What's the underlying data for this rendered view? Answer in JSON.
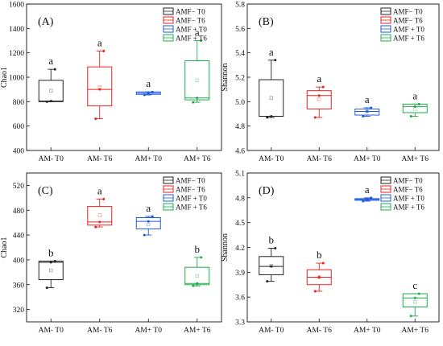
{
  "chart_data": [
    {
      "type": "box",
      "panel_label": "(A)",
      "ylabel": "Chao1",
      "ylim": [
        400,
        1600
      ],
      "yticks": [
        "400",
        "600",
        "800",
        "1000",
        "1200",
        "1400",
        "1600"
      ],
      "categories": [
        "AM- T0",
        "AM- T6",
        "AM+ T0",
        "AM+ T6"
      ],
      "legend": [
        "AMF− T0",
        "AMF− T6",
        "AMF + T0",
        "AMF + T6"
      ],
      "series": [
        {
          "name": "AMF− T0",
          "color": "#222222",
          "whisker_low": 800,
          "q1": 800,
          "median": 805,
          "q3": 975,
          "whisker_high": 1065,
          "mean": 890,
          "points": [
            800,
            805,
            1065
          ],
          "sig": "a"
        },
        {
          "name": "AMF− T6",
          "color": "#e8211d",
          "whisker_low": 660,
          "q1": 765,
          "median": 900,
          "q3": 1085,
          "whisker_high": 1215,
          "mean": 920,
          "points": [
            660,
            900,
            1215
          ],
          "sig": "a"
        },
        {
          "name": "AMF + T0",
          "color": "#1f5bd9",
          "whisker_low": 855,
          "q1": 860,
          "median": 870,
          "q3": 880,
          "whisker_high": 880,
          "mean": 868,
          "points": [
            855,
            870,
            880
          ],
          "sig": "a"
        },
        {
          "name": "AMF + T6",
          "color": "#1faa4a",
          "whisker_low": 795,
          "q1": 815,
          "median": 830,
          "q3": 1135,
          "whisker_high": 1300,
          "mean": 975,
          "points": [
            795,
            830,
            1300
          ],
          "sig": "a"
        }
      ]
    },
    {
      "type": "box",
      "panel_label": "(B)",
      "ylabel": "Shannon",
      "ylim": [
        4.6,
        5.8
      ],
      "yticks": [
        "4.6",
        "4.8",
        "5.0",
        "5.2",
        "5.4",
        "5.6",
        "5.8"
      ],
      "categories": [
        "AM- T0",
        "AM- T6",
        "AM+ T0",
        "AM+ T6"
      ],
      "legend": [
        "AMF− T0",
        "AMF− T6",
        "AMF + T0",
        "AMF + T6"
      ],
      "series": [
        {
          "name": "AMF− T0",
          "color": "#222222",
          "whisker_low": 4.87,
          "q1": 4.88,
          "median": 4.88,
          "q3": 5.18,
          "whisker_high": 5.34,
          "mean": 5.03,
          "points": [
            4.87,
            4.88,
            5.34
          ],
          "sig": "a"
        },
        {
          "name": "AMF− T6",
          "color": "#e8211d",
          "whisker_low": 4.87,
          "q1": 4.94,
          "median": 5.05,
          "q3": 5.09,
          "whisker_high": 5.12,
          "mean": 5.02,
          "points": [
            4.87,
            5.05,
            5.12
          ],
          "sig": "a"
        },
        {
          "name": "AMF + T0",
          "color": "#1f5bd9",
          "whisker_low": 4.88,
          "q1": 4.89,
          "median": 4.92,
          "q3": 4.94,
          "whisker_high": 4.95,
          "mean": 4.92,
          "points": [
            4.88,
            4.92,
            4.95
          ],
          "sig": "a"
        },
        {
          "name": "AMF + T6",
          "color": "#1faa4a",
          "whisker_low": 4.88,
          "q1": 4.91,
          "median": 4.96,
          "q3": 4.98,
          "whisker_high": 4.98,
          "mean": 4.94,
          "points": [
            4.88,
            4.96,
            4.98
          ],
          "sig": "a"
        }
      ]
    },
    {
      "type": "box",
      "panel_label": "(C)",
      "ylabel": "Chao1",
      "ylim": [
        300,
        540
      ],
      "yticks": [
        "320",
        "360",
        "400",
        "440",
        "480",
        "520"
      ],
      "categories": [
        "AM- T0",
        "AM- T6",
        "AM+ T0",
        "AM+ T6"
      ],
      "legend": [
        "AMF− T0",
        "AMF− T6",
        "AMF + T0",
        "AMF + T6"
      ],
      "series": [
        {
          "name": "AMF− T0",
          "color": "#222222",
          "whisker_low": 355,
          "q1": 368,
          "median": 396,
          "q3": 398,
          "whisker_high": 398,
          "mean": 383,
          "points": [
            355,
            396,
            398
          ],
          "sig": "b"
        },
        {
          "name": "AMF− T6",
          "color": "#e8211d",
          "whisker_low": 453,
          "q1": 456,
          "median": 461,
          "q3": 486,
          "whisker_high": 498,
          "mean": 472,
          "points": [
            453,
            461,
            498
          ],
          "sig": "a"
        },
        {
          "name": "AMF + T0",
          "color": "#1f5bd9",
          "whisker_low": 440,
          "q1": 450,
          "median": 462,
          "q3": 468,
          "whisker_high": 470,
          "mean": 457,
          "points": [
            440,
            462,
            470
          ],
          "sig": "a"
        },
        {
          "name": "AMF + T6",
          "color": "#1faa4a",
          "whisker_low": 358,
          "q1": 360,
          "median": 362,
          "q3": 388,
          "whisker_high": 404,
          "mean": 374,
          "points": [
            358,
            362,
            404
          ],
          "sig": "b"
        }
      ]
    },
    {
      "type": "box",
      "panel_label": "(D)",
      "ylabel": "Shannon",
      "ylim": [
        3.3,
        5.1
      ],
      "yticks": [
        "3.3",
        "3.6",
        "3.9",
        "4.2",
        "4.5",
        "4.8",
        "5.1"
      ],
      "categories": [
        "AM- T0",
        "AM- T6",
        "AM+ T0",
        "AM+ T6"
      ],
      "legend": [
        "AMF− T0",
        "AMF− T6",
        "AMF + T0",
        "AMF + T6"
      ],
      "series": [
        {
          "name": "AMF− T0",
          "color": "#222222",
          "whisker_low": 3.79,
          "q1": 3.87,
          "median": 3.97,
          "q3": 4.09,
          "whisker_high": 4.19,
          "mean": 3.98,
          "points": [
            3.79,
            3.97,
            4.19
          ],
          "sig": "b"
        },
        {
          "name": "AMF− T6",
          "color": "#e8211d",
          "whisker_low": 3.67,
          "q1": 3.75,
          "median": 3.84,
          "q3": 3.93,
          "whisker_high": 4.01,
          "mean": 3.84,
          "points": [
            3.67,
            3.84,
            4.01
          ],
          "sig": "b"
        },
        {
          "name": "AMF + T0",
          "color": "#1f5bd9",
          "whisker_low": 4.76,
          "q1": 4.77,
          "median": 4.78,
          "q3": 4.79,
          "whisker_high": 4.8,
          "mean": 4.78,
          "points": [
            4.76,
            4.78,
            4.8
          ],
          "sig": "a"
        },
        {
          "name": "AMF + T6",
          "color": "#1faa4a",
          "whisker_low": 3.37,
          "q1": 3.48,
          "median": 3.59,
          "q3": 3.64,
          "whisker_high": 3.64,
          "mean": 3.54,
          "points": [
            3.37,
            3.59,
            3.64
          ],
          "sig": "c"
        }
      ]
    }
  ]
}
